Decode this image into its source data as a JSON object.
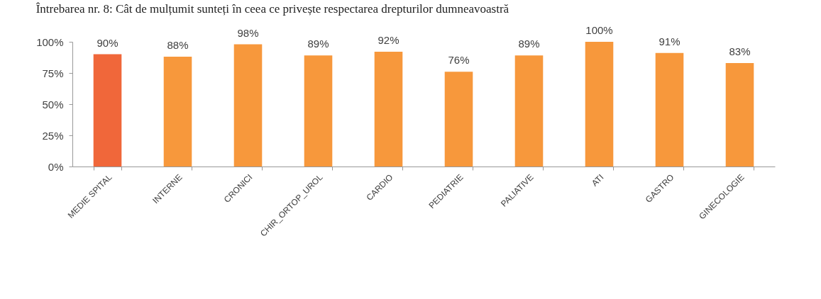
{
  "chart_data": {
    "type": "bar",
    "title": "Întrebarea nr. 8: Cât de mulțumit sunteți în ceea ce privește respectarea drepturilor dumneavoastră",
    "categories": [
      "MEDIE SPITAL",
      "INTERNE",
      "CRONICI",
      "CHIR_ORTOP_UROL",
      "CARDIO",
      "PEDIATRIE",
      "PALIATIVE",
      "ATI",
      "GASTRO",
      "GINECOLOGIE"
    ],
    "values": [
      90,
      88,
      98,
      89,
      92,
      76,
      89,
      100,
      91,
      83
    ],
    "value_labels": [
      "90%",
      "88%",
      "98%",
      "89%",
      "92%",
      "76%",
      "89%",
      "100%",
      "91%",
      "83%"
    ],
    "colors": [
      "#f0673a",
      "#f7983c",
      "#f7983c",
      "#f7983c",
      "#f7983c",
      "#f7983c",
      "#f7983c",
      "#f7983c",
      "#f7983c",
      "#f7983c"
    ],
    "ylim": [
      0,
      100
    ],
    "yticks": [
      {
        "value": 0,
        "label": "0%"
      },
      {
        "value": 25,
        "label": "25%"
      },
      {
        "value": 50,
        "label": "50%"
      },
      {
        "value": 75,
        "label": "75%"
      },
      {
        "value": 100,
        "label": "100%"
      }
    ]
  }
}
